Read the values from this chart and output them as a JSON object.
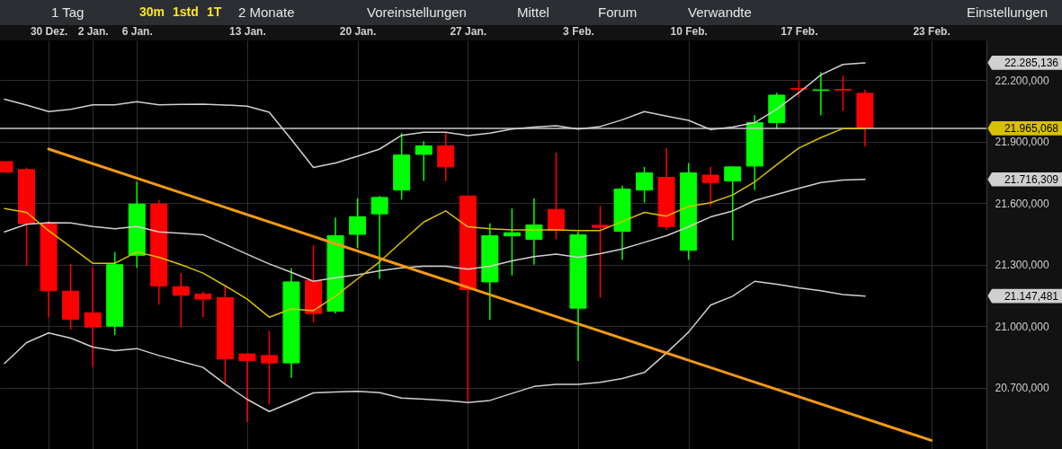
{
  "chart_data": {
    "type": "candlestick",
    "annotations": [
      "1 Tag",
      "30m",
      "1std",
      "1T",
      "2 Monate",
      "Voreinstellungen",
      "Mittel",
      "Forum",
      "Verwandte",
      "Einstellungen",
      "22.285,136",
      "21.716,309",
      "21.147,481"
    ],
    "categories": [
      null,
      null,
      "30 Dez.",
      null,
      "2 Jan.",
      null,
      "6 Jan.",
      null,
      null,
      null,
      null,
      "13 Jan.",
      null,
      null,
      null,
      null,
      "20 Jan.",
      null,
      null,
      null,
      null,
      "27 Jan.",
      null,
      null,
      null,
      null,
      "3 Feb.",
      null,
      null,
      null,
      null,
      "10 Feb.",
      null,
      null,
      null,
      null,
      "17 Feb.",
      null,
      null,
      null,
      null,
      null,
      "23 Feb."
    ],
    "ohlc": [
      [
        21803,
        21803,
        21752,
        21752
      ],
      [
        21764,
        21774,
        21295,
        21500
      ],
      [
        21497,
        21514,
        21044,
        21173
      ],
      [
        21171,
        21304,
        20983,
        21034
      ],
      [
        21065,
        21288,
        20799,
        20996
      ],
      [
        21000,
        21362,
        20957,
        21300
      ],
      [
        21346,
        21705,
        21285,
        21596
      ],
      [
        21596,
        21616,
        21105,
        21196
      ],
      [
        21193,
        21260,
        20996,
        21151
      ],
      [
        21157,
        21168,
        21044,
        21132
      ],
      [
        21139,
        21197,
        20723,
        20840
      ],
      [
        20865,
        20865,
        20533,
        20832
      ],
      [
        20857,
        20976,
        20618,
        20821
      ],
      [
        20821,
        21282,
        20748,
        21216
      ],
      [
        21222,
        21394,
        21019,
        21062
      ],
      [
        21073,
        21530,
        21062,
        21441
      ],
      [
        21448,
        21624,
        21380,
        21534
      ],
      [
        21548,
        21635,
        21231,
        21628
      ],
      [
        21664,
        21942,
        21618,
        21835
      ],
      [
        21838,
        21902,
        21708,
        21880
      ],
      [
        21880,
        21946,
        21708,
        21777
      ],
      [
        21635,
        21635,
        20633,
        21178
      ],
      [
        21216,
        21501,
        21032,
        21441
      ],
      [
        21441,
        21574,
        21248,
        21456
      ],
      [
        21424,
        21624,
        21300,
        21494
      ],
      [
        21570,
        21847,
        21424,
        21467
      ],
      [
        21088,
        21460,
        20830,
        21446
      ],
      [
        21492,
        21587,
        21139,
        21482
      ],
      [
        21463,
        21686,
        21324,
        21669
      ],
      [
        21664,
        21777,
        21603,
        21748
      ],
      [
        21726,
        21869,
        21470,
        21486
      ],
      [
        21370,
        21796,
        21324,
        21748
      ],
      [
        21737,
        21777,
        21587,
        21701
      ],
      [
        21708,
        21781,
        21419,
        21777
      ],
      [
        21781,
        22029,
        21664,
        21993
      ],
      [
        21993,
        22139,
        21961,
        22127
      ],
      [
        22159,
        22200,
        22117,
        22156
      ],
      [
        22150,
        22238,
        22029,
        22153
      ],
      [
        22155,
        22222,
        22051,
        22152
      ],
      [
        22136,
        22153,
        21876,
        21965
      ],
      null,
      null,
      null
    ],
    "colors": [
      "#ff0000",
      "#ff0000",
      "#ff0000",
      "#ff0000",
      "#ff0000",
      "#00ff00",
      "#00ff00",
      "#ff0000",
      "#ff0000",
      "#ff0000",
      "#ff0000",
      "#ff0000",
      "#ff0000",
      "#00ff00",
      "#ff0000",
      "#00ff00",
      "#00ff00",
      "#00ff00",
      "#00ff00",
      "#00ff00",
      "#ff0000",
      "#ff0000",
      "#00ff00",
      "#00ff00",
      "#00ff00",
      "#ff0000",
      "#00ff00",
      "#ff0000",
      "#00ff00",
      "#00ff00",
      "#ff0000",
      "#00ff00",
      "#ff0000",
      "#00ff00",
      "#00ff00",
      "#00ff00",
      "#ff0000",
      "#00ff00",
      "#ff0000",
      "#ff0000",
      null,
      null,
      null
    ],
    "series": [
      {
        "type": "line",
        "color": "#d0d0d0",
        "values": [
          22107,
          22079,
          22047,
          22058,
          22080,
          22080,
          22095,
          22080,
          22082,
          22083,
          22079,
          22073,
          22044,
          21911,
          21774,
          21796,
          21829,
          21864,
          21931,
          21946,
          21946,
          21930,
          21942,
          21961,
          21971,
          21978,
          21961,
          21974,
          22007,
          22047,
          22025,
          22004,
          21959,
          21971,
          21993,
          22058,
          22139,
          22226,
          22277,
          22285,
          null,
          null,
          null
        ]
      },
      {
        "type": "line",
        "color": "#d0d0d0",
        "values": [
          21460,
          21497,
          21505,
          21504,
          21486,
          21475,
          21486,
          21460,
          21453,
          21446,
          21399,
          21351,
          21304,
          21263,
          21219,
          21237,
          21251,
          21270,
          21285,
          21292,
          21292,
          21278,
          21292,
          21319,
          21339,
          21351,
          21336,
          21354,
          21377,
          21409,
          21441,
          21485,
          21533,
          21562,
          21613,
          21643,
          21672,
          21701,
          21713,
          21716,
          null,
          null,
          null
        ]
      },
      {
        "type": "line",
        "color": "#d0d0d0",
        "values": [
          20818,
          20920,
          20967,
          20942,
          20898,
          20881,
          20891,
          20857,
          20828,
          20799,
          20717,
          20643,
          20584,
          20629,
          20675,
          20679,
          20682,
          20676,
          20650,
          20644,
          20638,
          20628,
          20638,
          20672,
          20706,
          20716,
          20716,
          20726,
          20745,
          20774,
          20869,
          20971,
          21103,
          21146,
          21219,
          21205,
          21187,
          21173,
          21154,
          21147,
          null,
          null,
          null
        ]
      },
      {
        "type": "line",
        "color": "#d8c000",
        "values": [
          21574,
          21555,
          21466,
          21387,
          21307,
          21307,
          21362,
          21336,
          21300,
          21259,
          21197,
          21132,
          21044,
          21084,
          21076,
          21146,
          21231,
          21314,
          21412,
          21508,
          21562,
          21485,
          21475,
          21470,
          21470,
          21470,
          21467,
          21467,
          21511,
          21555,
          21537,
          21584,
          21602,
          21640,
          21704,
          21788,
          21869,
          21920,
          21964,
          21965,
          null,
          null,
          null
        ]
      },
      {
        "type": "line",
        "color": "#f29a12",
        "x": [
          "30 Dez.",
          "23 Feb."
        ],
        "values": [
          21864,
          20443
        ]
      }
    ],
    "ref_lines": [
      {
        "axis": "y",
        "value": 21965.068,
        "label": "21.965,068",
        "color": "#c8c8c8"
      }
    ],
    "ylim": [
      20401,
      22394
    ],
    "yticks": [
      {
        "value": 20700,
        "label": "20.700,000"
      },
      {
        "value": 21000,
        "label": "21.000,000"
      },
      {
        "value": 21300,
        "label": "21.300,000"
      },
      {
        "value": 21600,
        "label": "21.600,000"
      },
      {
        "value": 21900,
        "label": "21.900,000"
      },
      {
        "value": 22200,
        "label": "22.200,000"
      }
    ],
    "grid": true
  }
}
